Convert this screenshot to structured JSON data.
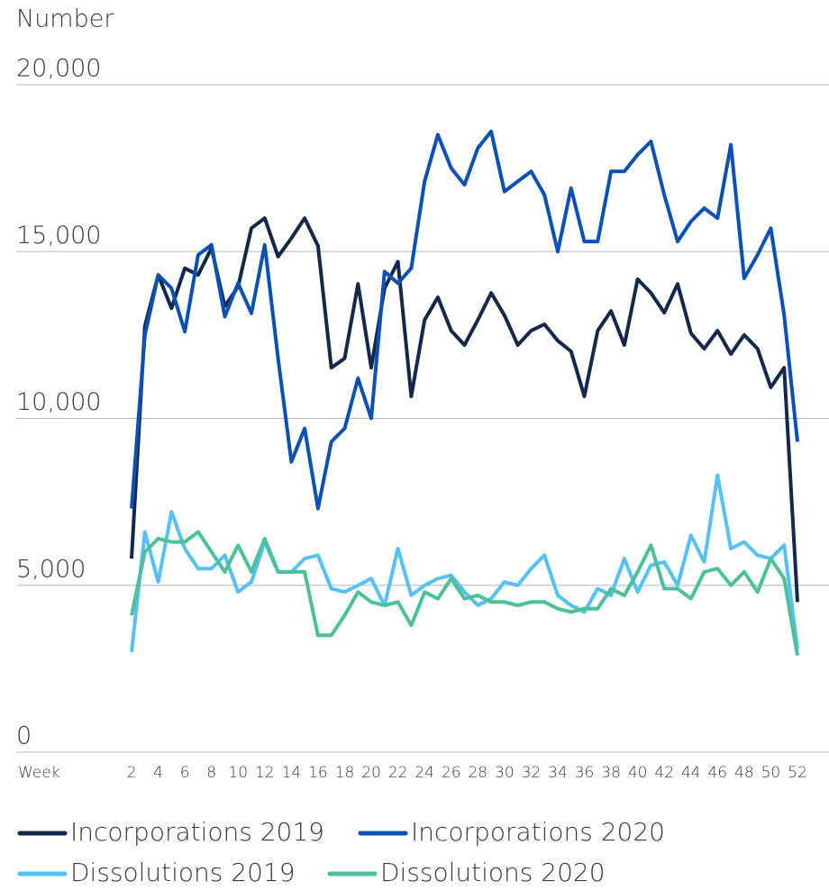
{
  "chart_data": {
    "type": "line",
    "y_label": "Number",
    "x_label": "Week",
    "x": [
      2,
      3,
      4,
      5,
      6,
      7,
      8,
      9,
      10,
      11,
      12,
      13,
      14,
      15,
      16,
      17,
      18,
      19,
      20,
      21,
      22,
      23,
      24,
      25,
      26,
      27,
      28,
      29,
      30,
      31,
      32,
      33,
      34,
      35,
      36,
      37,
      38,
      39,
      40,
      41,
      42,
      43,
      44,
      45,
      46,
      47,
      48,
      49,
      50,
      51,
      52
    ],
    "xlim": [
      2,
      52
    ],
    "xticks": [
      2,
      4,
      6,
      8,
      10,
      12,
      14,
      16,
      18,
      20,
      22,
      24,
      26,
      28,
      30,
      32,
      34,
      36,
      38,
      40,
      42,
      44,
      46,
      48,
      50,
      52
    ],
    "ylim": [
      0,
      20000
    ],
    "yticks": [
      0,
      {
        "value": 5000,
        "label": "5,000"
      },
      {
        "value": 10000,
        "label": "10,000"
      },
      {
        "value": 15000,
        "label": "15,000"
      },
      {
        "value": 20000,
        "label": "20,000"
      }
    ],
    "grid": true,
    "legend": "bottom",
    "series": [
      {
        "name": "Incorporations 2019",
        "color": "#14284b",
        "values": [
          5800,
          12770,
          14300,
          13300,
          14500,
          14300,
          15100,
          13360,
          13950,
          15700,
          16000,
          14850,
          15400,
          16000,
          15170,
          11520,
          11800,
          14030,
          11520,
          13900,
          14700,
          10660,
          12950,
          13630,
          12630,
          12200,
          12950,
          13760,
          13090,
          12200,
          12630,
          12820,
          12330,
          12010,
          10660,
          12630,
          13220,
          12200,
          14170,
          13760,
          13170,
          14030,
          12550,
          12090,
          12630,
          11930,
          12500,
          12090,
          10930,
          11520,
          4500
        ]
      },
      {
        "name": "Incorporations 2020",
        "color": "#0b50b4",
        "values": [
          7300,
          12500,
          14300,
          13900,
          12600,
          14900,
          15200,
          13050,
          14050,
          13150,
          15200,
          11800,
          8700,
          9700,
          7300,
          9300,
          9700,
          11200,
          10000,
          14400,
          14050,
          14500,
          17100,
          18500,
          17500,
          17000,
          18100,
          18600,
          16800,
          17100,
          17400,
          16700,
          15000,
          16900,
          15300,
          15300,
          17400,
          17400,
          17900,
          18300,
          16700,
          15300,
          15900,
          16300,
          16000,
          18200,
          14200,
          14900,
          15700,
          13100,
          9300
        ]
      },
      {
        "name": "Dissolutions 2019",
        "color": "#55c1f5",
        "values": [
          3000,
          6600,
          5100,
          7200,
          6100,
          5500,
          5500,
          5900,
          4800,
          5100,
          6300,
          5400,
          5400,
          5800,
          5900,
          4900,
          4800,
          5000,
          5200,
          4400,
          6100,
          4700,
          5000,
          5200,
          5300,
          4800,
          4400,
          4600,
          5100,
          5000,
          5500,
          5900,
          4700,
          4400,
          4200,
          4900,
          4700,
          5800,
          4800,
          5600,
          5700,
          5000,
          6500,
          5700,
          8300,
          6100,
          6300,
          5900,
          5800,
          6200,
          3100
        ]
      },
      {
        "name": "Dissolutions 2020",
        "color": "#4cbf9c",
        "values": [
          4100,
          6000,
          6400,
          6300,
          6300,
          6600,
          6000,
          5400,
          6200,
          5400,
          6400,
          5400,
          5400,
          5400,
          3500,
          3500,
          4100,
          4800,
          4500,
          4400,
          4500,
          3800,
          4800,
          4600,
          5200,
          4600,
          4700,
          4500,
          4500,
          4400,
          4500,
          4500,
          4300,
          4200,
          4300,
          4300,
          4900,
          4700,
          5400,
          6200,
          4900,
          4900,
          4600,
          5400,
          5500,
          5000,
          5400,
          4800,
          5800,
          5200,
          2900
        ]
      }
    ]
  }
}
